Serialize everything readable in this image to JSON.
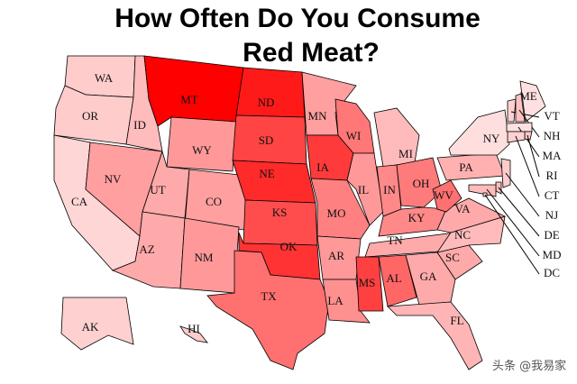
{
  "header": {
    "title": [
      "How Often Do You Consume",
      "Red Meat?"
    ]
  },
  "states": [
    {
      "label": "WA",
      "color": "#ffcccc"
    },
    {
      "label": "OR",
      "color": "#ffcccc"
    },
    {
      "label": "CA",
      "color": "#ffd6d6"
    },
    {
      "label": "ID",
      "color": "#ffbcbc"
    },
    {
      "label": "NV",
      "color": "#ff9f9f"
    },
    {
      "label": "MT",
      "color": "#ff0000"
    },
    {
      "label": "WY",
      "color": "#ff9999"
    },
    {
      "label": "UT",
      "color": "#ffaaaa"
    },
    {
      "label": "CO",
      "color": "#ff9f9f"
    },
    {
      "label": "AZ",
      "color": "#ffaaaa"
    },
    {
      "label": "NM",
      "color": "#ff9999"
    },
    {
      "label": "ND",
      "color": "#ff1a1a"
    },
    {
      "label": "SD",
      "color": "#ff4444"
    },
    {
      "label": "NE",
      "color": "#ff2a2a"
    },
    {
      "label": "KS",
      "color": "#ff4d4d"
    },
    {
      "label": "OK",
      "color": "#ff3333"
    },
    {
      "label": "TX",
      "color": "#ff7070"
    },
    {
      "label": "MN",
      "color": "#ff9f9f"
    },
    {
      "label": "IA",
      "color": "#ff3a3a"
    },
    {
      "label": "MO",
      "color": "#ff8080"
    },
    {
      "label": "AR",
      "color": "#ff9999"
    },
    {
      "label": "LA",
      "color": "#ff9090"
    },
    {
      "label": "WI",
      "color": "#ff7777"
    },
    {
      "label": "IL",
      "color": "#ff9999"
    },
    {
      "label": "MI",
      "color": "#ffbbbb"
    },
    {
      "label": "IN",
      "color": "#ff8888"
    },
    {
      "label": "OH",
      "color": "#ff7b7b"
    },
    {
      "label": "KY",
      "color": "#ff8888"
    },
    {
      "label": "TN",
      "color": "#ffaaaa"
    },
    {
      "label": "MS",
      "color": "#ff4040"
    },
    {
      "label": "AL",
      "color": "#ff6666"
    },
    {
      "label": "GA",
      "color": "#ffaaaa"
    },
    {
      "label": "FL",
      "color": "#ffb5b5"
    },
    {
      "label": "SC",
      "color": "#ffaaaa"
    },
    {
      "label": "NC",
      "color": "#ffbbbb"
    },
    {
      "label": "VA",
      "color": "#ffaaaa"
    },
    {
      "label": "WV",
      "color": "#ff7070"
    },
    {
      "label": "PA",
      "color": "#ffb0b0"
    },
    {
      "label": "NY",
      "color": "#ffdede"
    },
    {
      "label": "ME",
      "color": "#ffe0e0"
    },
    {
      "label": "VT",
      "color": "#ffd0d0"
    },
    {
      "label": "NH",
      "color": "#ffc0c0"
    },
    {
      "label": "MA",
      "color": "#ffe0e0"
    },
    {
      "label": "RI",
      "color": "#ffc8c8"
    },
    {
      "label": "CT",
      "color": "#ffd0d0"
    },
    {
      "label": "NJ",
      "color": "#ffcccc"
    },
    {
      "label": "DE",
      "color": "#ffbbbb"
    },
    {
      "label": "MD",
      "color": "#ffbbbb"
    },
    {
      "label": "DC",
      "color": "#ffdddd"
    },
    {
      "label": "AK",
      "color": "#ffd0d0"
    },
    {
      "label": "HI",
      "color": "#ffcccc"
    }
  ],
  "watermark": "头条 @我易家"
}
